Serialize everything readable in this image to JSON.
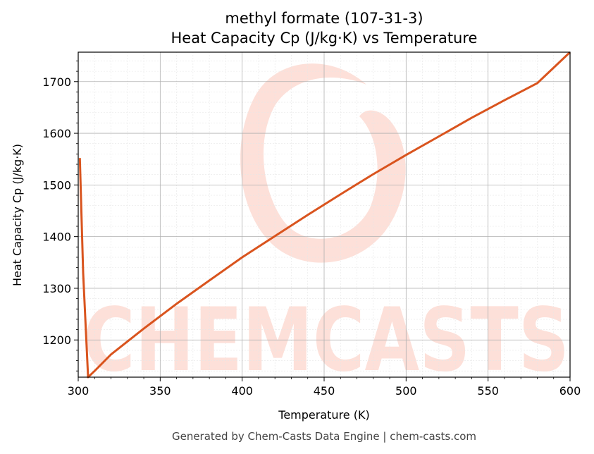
{
  "chart_data": {
    "type": "line",
    "title": "methyl formate (107-31-3)",
    "subtitle": "Heat Capacity Cp (J/kg·K) vs Temperature",
    "xlabel": "Temperature (K)",
    "ylabel": "Heat Capacity Cp (J/kg·K)",
    "xlim": [
      300,
      600
    ],
    "ylim": [
      1128,
      1757
    ],
    "xticks": [
      300,
      350,
      400,
      450,
      500,
      550,
      600
    ],
    "yticks": [
      1200,
      1300,
      1400,
      1500,
      1600,
      1700
    ],
    "grid": true,
    "series": [
      {
        "color": "#d9541e",
        "x": [
          301,
          303,
          306,
          310,
          320,
          340,
          360,
          380,
          400,
          420,
          440,
          460,
          480,
          500,
          520,
          540,
          560,
          580,
          600
        ],
        "y": [
          1552,
          1330,
          1128,
          1140,
          1172,
          1222,
          1270,
          1315,
          1360,
          1401,
          1442,
          1482,
          1521,
          1558,
          1594,
          1630,
          1664,
          1697,
          1757
        ]
      }
    ]
  },
  "watermark": {
    "text": "CHEMCASTS",
    "color": "#fde0d9"
  },
  "footer": "Generated by Chem-Casts Data Engine | chem-casts.com"
}
